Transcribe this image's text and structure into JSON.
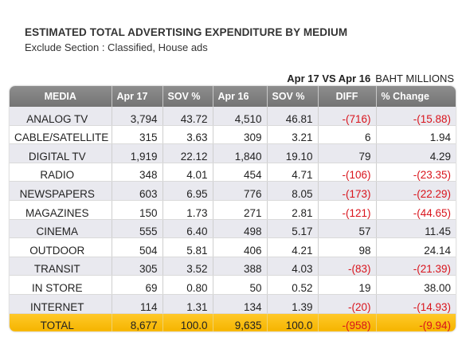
{
  "title": "ESTIMATED TOTAL ADVERTISING EXPENDITURE BY MEDIUM",
  "subtitle": "Exclude Section : Classified, House ads",
  "caption": {
    "period": "Apr 17 VS Apr 16",
    "unit": "BAHT MILLIONS"
  },
  "headers": [
    "MEDIA",
    "Apr 17",
    "SOV %",
    "Apr 16",
    "SOV %",
    "DIFF",
    "% Change"
  ],
  "rows": [
    {
      "media": "ANALOG  TV",
      "apr17": "3,794",
      "sov17": "43.72",
      "apr16": "4,510",
      "sov16": "46.81",
      "diff": "-(716)",
      "pct": "-(15.88)"
    },
    {
      "media": "CABLE/SATELLITE",
      "apr17": "315",
      "sov17": "3.63",
      "apr16": "309",
      "sov16": "3.21",
      "diff": "6",
      "pct": "1.94"
    },
    {
      "media": "DIGITAL TV",
      "apr17": "1,919",
      "sov17": "22.12",
      "apr16": "1,840",
      "sov16": "19.10",
      "diff": "79",
      "pct": "4.29"
    },
    {
      "media": "RADIO",
      "apr17": "348",
      "sov17": "4.01",
      "apr16": "454",
      "sov16": "4.71",
      "diff": "-(106)",
      "pct": "-(23.35)"
    },
    {
      "media": "NEWSPAPERS",
      "apr17": "603",
      "sov17": "6.95",
      "apr16": "776",
      "sov16": "8.05",
      "diff": "-(173)",
      "pct": "-(22.29)"
    },
    {
      "media": "MAGAZINES",
      "apr17": "150",
      "sov17": "1.73",
      "apr16": "271",
      "sov16": "2.81",
      "diff": "-(121)",
      "pct": "-(44.65)"
    },
    {
      "media": "CINEMA",
      "apr17": "555",
      "sov17": "6.40",
      "apr16": "498",
      "sov16": "5.17",
      "diff": "57",
      "pct": "11.45"
    },
    {
      "media": "OUTDOOR",
      "apr17": "504",
      "sov17": "5.81",
      "apr16": "406",
      "sov16": "4.21",
      "diff": "98",
      "pct": "24.14"
    },
    {
      "media": "TRANSIT",
      "apr17": "305",
      "sov17": "3.52",
      "apr16": "388",
      "sov16": "4.03",
      "diff": "-(83)",
      "pct": "-(21.39)"
    },
    {
      "media": "IN STORE",
      "apr17": "69",
      "sov17": "0.80",
      "apr16": "50",
      "sov16": "0.52",
      "diff": "19",
      "pct": "38.00"
    },
    {
      "media": "INTERNET",
      "apr17": "114",
      "sov17": "1.31",
      "apr16": "134",
      "sov16": "1.39",
      "diff": "-(20)",
      "pct": "-(14.93)"
    }
  ],
  "total": {
    "media": "TOTAL",
    "apr17": "8,677",
    "sov17": "100.0",
    "apr16": "9,635",
    "sov16": "100.0",
    "diff": "-(958)",
    "pct": "-(9.94)"
  },
  "colors": {
    "header_bg": "#808080",
    "row_shade": "#e9e9ef",
    "negative": "#d9141c",
    "total_bg": "#fbbf10"
  }
}
